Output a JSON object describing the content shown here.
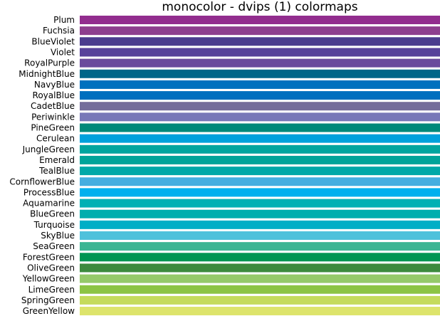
{
  "chart_data": {
    "type": "table",
    "title": "monocolor - dvips (1) colormaps",
    "rows": [
      {
        "name": "Plum",
        "color": "#922D8E"
      },
      {
        "name": "Fuchsia",
        "color": "#8E3F8E"
      },
      {
        "name": "BlueViolet",
        "color": "#4B3C8E"
      },
      {
        "name": "Violet",
        "color": "#58429A"
      },
      {
        "name": "RoyalPurple",
        "color": "#6A4A9C"
      },
      {
        "name": "MidnightBlue",
        "color": "#006688"
      },
      {
        "name": "NavyBlue",
        "color": "#0071BE"
      },
      {
        "name": "RoyalBlue",
        "color": "#006FBE"
      },
      {
        "name": "CadetBlue",
        "color": "#746D9B"
      },
      {
        "name": "Periwinkle",
        "color": "#7878B8"
      },
      {
        "name": "PineGreen",
        "color": "#00897A"
      },
      {
        "name": "Cerulean",
        "color": "#00A1DC"
      },
      {
        "name": "JungleGreen",
        "color": "#00A59F"
      },
      {
        "name": "Emerald",
        "color": "#00A49A"
      },
      {
        "name": "TealBlue",
        "color": "#00A8A8"
      },
      {
        "name": "CornflowerBlue",
        "color": "#45AEE0"
      },
      {
        "name": "ProcessBlue",
        "color": "#00B0EE"
      },
      {
        "name": "Aquamarine",
        "color": "#00B0B4"
      },
      {
        "name": "BlueGreen",
        "color": "#00AEAE"
      },
      {
        "name": "Turquoise",
        "color": "#00AEC6"
      },
      {
        "name": "SkyBlue",
        "color": "#4FC1DB"
      },
      {
        "name": "SeaGreen",
        "color": "#3BB593"
      },
      {
        "name": "ForestGreen",
        "color": "#009552"
      },
      {
        "name": "OliveGreen",
        "color": "#3C8A3E"
      },
      {
        "name": "YellowGreen",
        "color": "#95C96A"
      },
      {
        "name": "LimeGreen",
        "color": "#8CC444"
      },
      {
        "name": "SpringGreen",
        "color": "#C5DB5C"
      },
      {
        "name": "GreenYellow",
        "color": "#DDE46B"
      }
    ]
  }
}
